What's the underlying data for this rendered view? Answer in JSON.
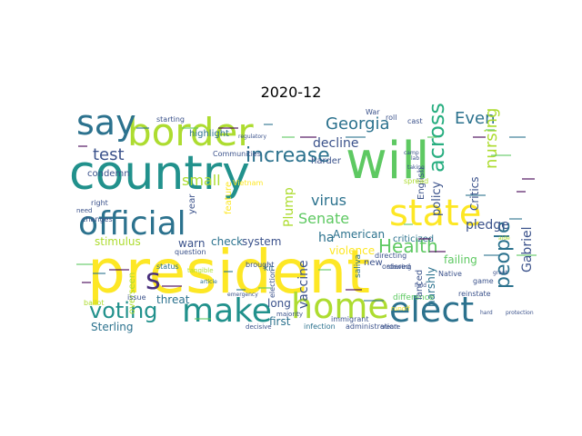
{
  "title": "2020-12",
  "palette": [
    "#440154",
    "#472d7b",
    "#3b528b",
    "#2c728e",
    "#21918c",
    "#28ae80",
    "#5ec962",
    "#addc30",
    "#fde725"
  ],
  "words": [
    {
      "text": "president",
      "color": "#fde725"
    },
    {
      "text": "country",
      "color": "#21918c"
    },
    {
      "text": "will",
      "color": "#5ec962"
    },
    {
      "text": "border",
      "color": "#addc30"
    },
    {
      "text": "say",
      "color": "#2c728e"
    },
    {
      "text": "official",
      "color": "#2c728e"
    },
    {
      "text": "state",
      "color": "#fde725"
    },
    {
      "text": "make",
      "color": "#21918c"
    },
    {
      "text": "home",
      "color": "#addc30"
    },
    {
      "text": "elect",
      "color": "#2c728e"
    },
    {
      "text": "s",
      "color": "#472d7b"
    },
    {
      "text": "voting",
      "color": "#21918c"
    },
    {
      "text": "increase",
      "color": "#2c728e"
    },
    {
      "text": "Georgia",
      "color": "#2c728e"
    },
    {
      "text": "across",
      "color": "#28ae80"
    },
    {
      "text": "Even",
      "color": "#2c728e"
    },
    {
      "text": "people",
      "color": "#2c728e"
    },
    {
      "text": "nursing",
      "color": "#addc30"
    },
    {
      "text": "test",
      "color": "#3b528b"
    },
    {
      "text": "small",
      "color": "#addc30"
    },
    {
      "text": "Health",
      "color": "#5ec962"
    },
    {
      "text": "Senate",
      "color": "#5ec962"
    },
    {
      "text": "virus",
      "color": "#2c728e"
    },
    {
      "text": "Plump",
      "color": "#addc30"
    },
    {
      "text": "decline",
      "color": "#3b528b"
    },
    {
      "text": "policy",
      "color": "#3b528b"
    },
    {
      "text": "Critics",
      "color": "#3b528b"
    },
    {
      "text": "pledge",
      "color": "#3b528b"
    },
    {
      "text": "Gabriel",
      "color": "#3b528b"
    },
    {
      "text": "failing",
      "color": "#5ec962"
    },
    {
      "text": "American",
      "color": "#2c728e"
    },
    {
      "text": "criticized",
      "color": "#2c728e"
    },
    {
      "text": "vaccine",
      "color": "#3b528b"
    },
    {
      "text": "ha",
      "color": "#2c728e"
    },
    {
      "text": "stimulus",
      "color": "#addc30"
    },
    {
      "text": "warn",
      "color": "#3b528b"
    },
    {
      "text": "check",
      "color": "#2c728e"
    },
    {
      "text": "system",
      "color": "#3b528b"
    },
    {
      "text": "Sterling",
      "color": "#2c728e"
    },
    {
      "text": "threat",
      "color": "#2c728e"
    },
    {
      "text": "long",
      "color": "#3b528b"
    },
    {
      "text": "first",
      "color": "#2c728e"
    },
    {
      "text": "harshly",
      "color": "#2c728e"
    },
    {
      "text": "overseen",
      "color": "#addc30"
    },
    {
      "text": "condemn",
      "color": "#3b528b"
    },
    {
      "text": "highlight",
      "color": "#2c728e"
    },
    {
      "text": "Communities",
      "color": "#3b528b"
    },
    {
      "text": "harder",
      "color": "#3b528b"
    },
    {
      "text": "English",
      "color": "#3b528b"
    },
    {
      "text": "year",
      "color": "#3b528b"
    },
    {
      "text": "saliva",
      "color": "#2c728e"
    },
    {
      "text": "violence",
      "color": "#fde725"
    },
    {
      "text": "new",
      "color": "#3b528b"
    },
    {
      "text": "kit",
      "color": "#2c728e"
    },
    {
      "text": "difference",
      "color": "#5ec962"
    },
    {
      "text": "immigrant",
      "color": "#3b528b"
    },
    {
      "text": "infection",
      "color": "#2c728e"
    },
    {
      "text": "administration",
      "color": "#3b528b"
    },
    {
      "text": "issue",
      "color": "#3b528b"
    },
    {
      "text": "question",
      "color": "#3b528b"
    },
    {
      "text": "starting",
      "color": "#3b528b"
    },
    {
      "text": "roll",
      "color": "#3b528b"
    },
    {
      "text": "cast",
      "color": "#3b528b"
    },
    {
      "text": "War",
      "color": "#3b528b"
    },
    {
      "text": "right",
      "color": "#3b528b"
    },
    {
      "text": "changes",
      "color": "#3b528b"
    },
    {
      "text": "lanced",
      "color": "#3b528b"
    },
    {
      "text": "brought",
      "color": "#3b528b"
    },
    {
      "text": "election",
      "color": "#3b528b"
    },
    {
      "text": "status",
      "color": "#2c728e"
    },
    {
      "text": "need",
      "color": "#3b528b"
    },
    {
      "text": "reinstate",
      "color": "#3b528b"
    },
    {
      "text": "Native",
      "color": "#3b528b"
    },
    {
      "text": "ordered",
      "color": "#3b528b"
    },
    {
      "text": "directing",
      "color": "#3b528b"
    },
    {
      "text": "slowing",
      "color": "#3b528b"
    },
    {
      "text": "game",
      "color": "#3b528b"
    },
    {
      "text": "create",
      "color": "#3b528b"
    },
    {
      "text": "decisive",
      "color": "#3b528b"
    },
    {
      "text": "majority",
      "color": "#3b528b"
    },
    {
      "text": "emergency",
      "color": "#3b528b"
    },
    {
      "text": "feature",
      "color": "#fde725"
    },
    {
      "text": "ballot",
      "color": "#addc30"
    },
    {
      "text": "Vietnam",
      "color": "#fde725"
    },
    {
      "text": "spread",
      "color": "#addc30"
    },
    {
      "text": "regulatory",
      "color": "#3b528b"
    },
    {
      "text": "tangible",
      "color": "#addc30"
    },
    {
      "text": "article",
      "color": "#2c728e"
    },
    {
      "text": "protection",
      "color": "#3b528b"
    },
    {
      "text": "grant",
      "color": "#3b528b"
    },
    {
      "text": "taking",
      "color": "#3b528b"
    },
    {
      "text": "lab",
      "color": "#3b528b"
    },
    {
      "text": "field",
      "color": "#3b528b"
    },
    {
      "text": "runoff",
      "color": "#fde725"
    },
    {
      "text": "aide",
      "color": "#addc30"
    },
    {
      "text": "hard",
      "color": "#3b528b"
    },
    {
      "text": "camp",
      "color": "#3b528b"
    }
  ]
}
